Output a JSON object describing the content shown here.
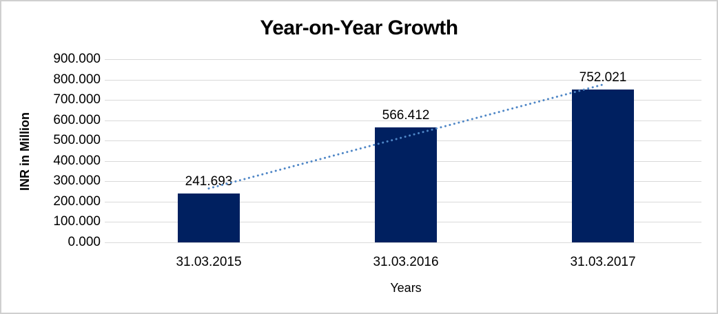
{
  "chart_data": {
    "type": "bar",
    "title": "Year-on-Year Growth",
    "categories": [
      "31.03.2015",
      "31.03.2016",
      "31.03.2017"
    ],
    "values": [
      241.693,
      566.412,
      752.021
    ],
    "data_labels": [
      "241.693",
      "566.412",
      "752.021"
    ],
    "xlabel": "Years",
    "ylabel": "INR in Million",
    "ylim": [
      0,
      900
    ],
    "ytick_step": 100,
    "ytick_labels": [
      "900.000",
      "800.000",
      "700.000",
      "600.000",
      "500.000",
      "400.000",
      "300.000",
      "200.000",
      "100.000",
      "0.000"
    ],
    "grid": true,
    "legend": "none",
    "trendline": {
      "type": "linear",
      "style": "dotted",
      "color": "#4e86c6"
    },
    "colors": {
      "bar": "#002060",
      "gridline": "#d9d9d9",
      "text": "#000000",
      "background": "#ffffff",
      "border": "#cfcfcf"
    }
  }
}
